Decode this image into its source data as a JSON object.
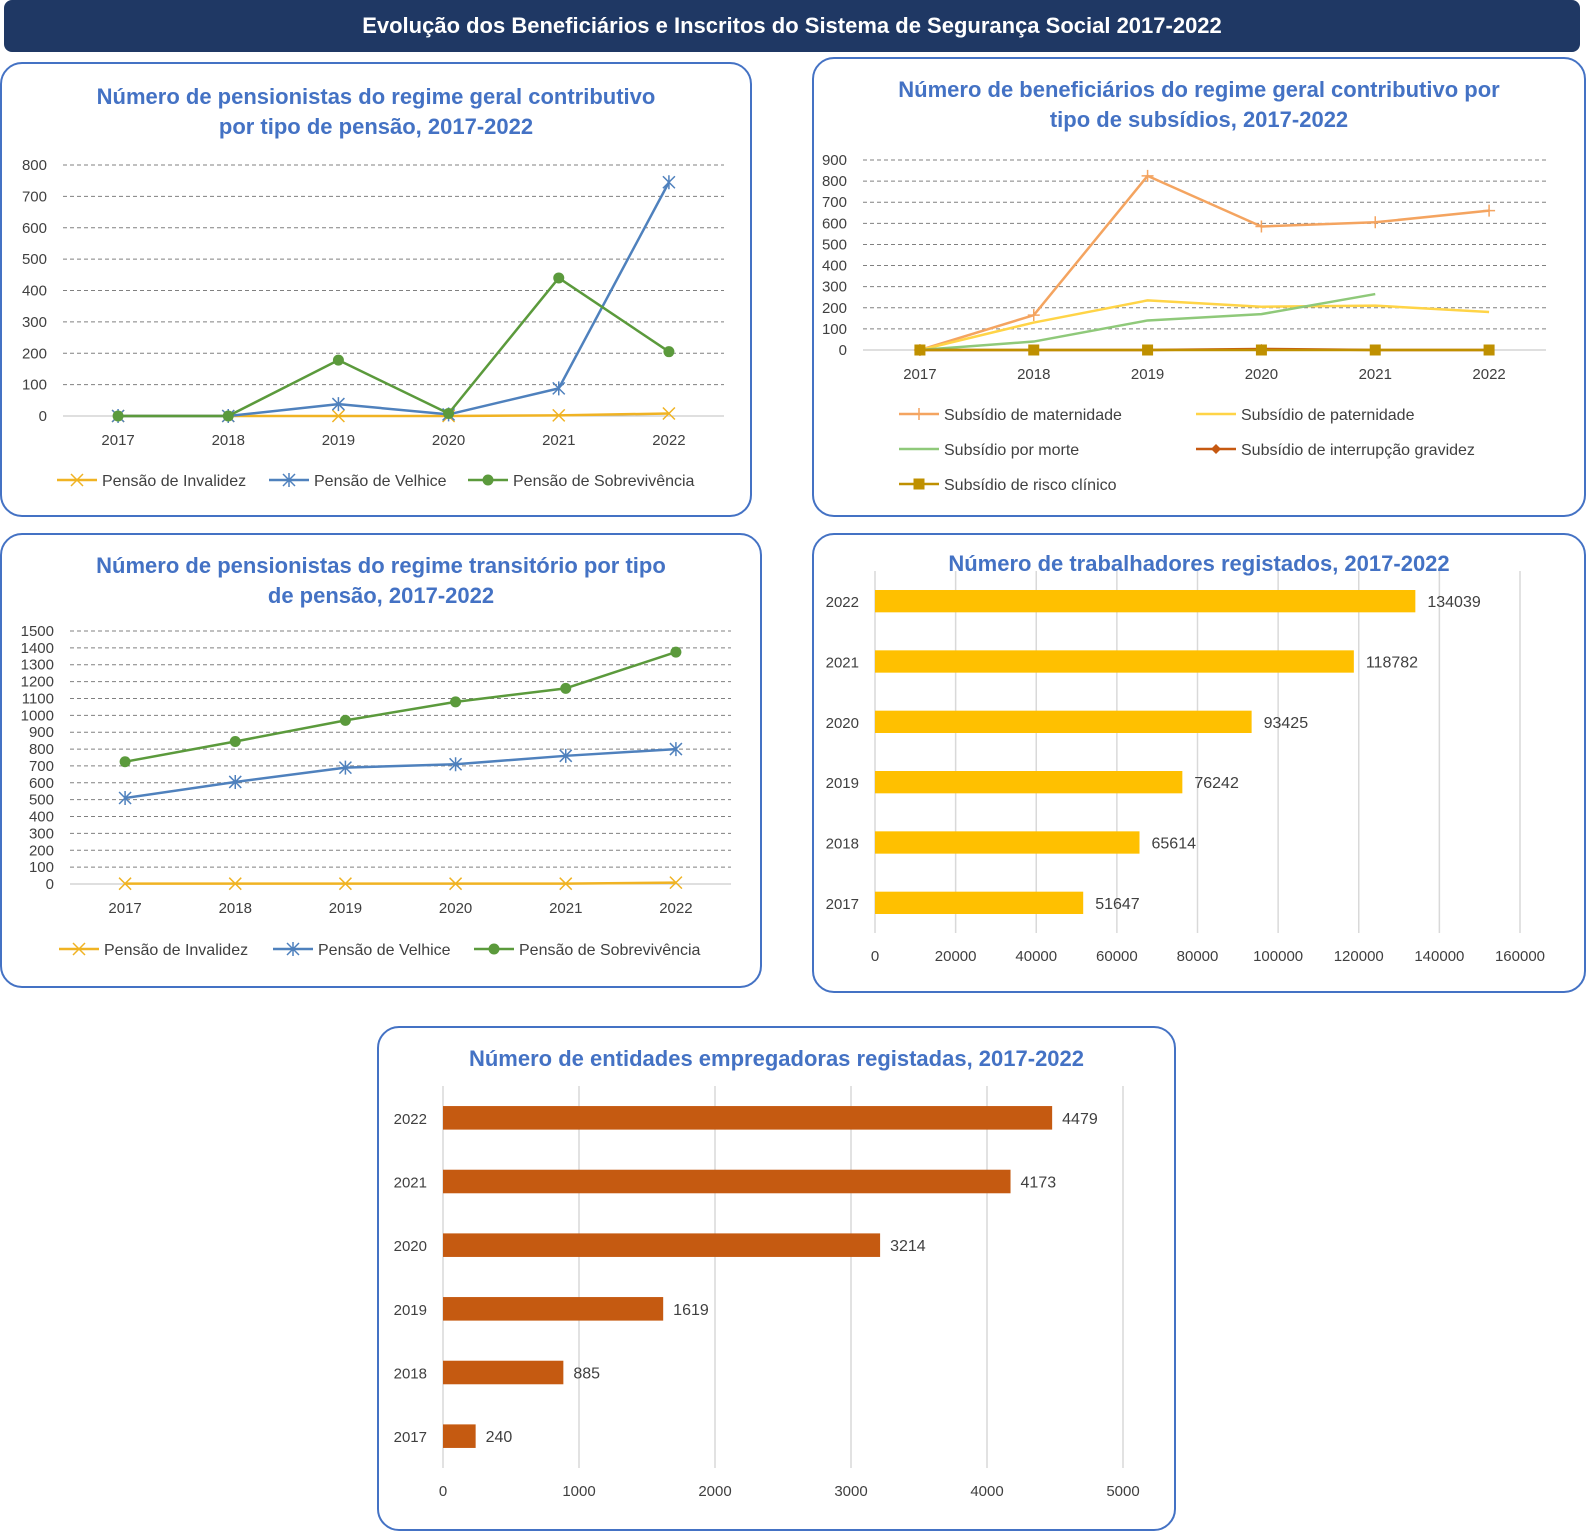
{
  "page": {
    "title": "Evolução dos Beneficiários e Inscritos do Sistema de Segurança Social 2017-2022"
  },
  "colors": {
    "banner": "#1f3864",
    "panel_border": "#4472c4",
    "title_text": "#4472c4"
  },
  "chart_data": [
    {
      "id": "pensionistas_geral",
      "type": "line",
      "title_lines": [
        "Número de pensionistas do regime geral contributivo",
        "por tipo de pensão, 2017-2022"
      ],
      "x": [
        "2017",
        "2018",
        "2019",
        "2020",
        "2021",
        "2022"
      ],
      "ylim": [
        0,
        800
      ],
      "yticks": [
        0,
        100,
        200,
        300,
        400,
        500,
        600,
        700,
        800
      ],
      "grid": true,
      "legend_position": "bottom",
      "series": [
        {
          "name": "Pensão de Invalidez",
          "color": "#f0b323",
          "marker": "x",
          "values": [
            0,
            0,
            0,
            0,
            2,
            8
          ]
        },
        {
          "name": "Pensão de Velhice",
          "color": "#4f81bd",
          "marker": "asterisk",
          "values": [
            0,
            0,
            38,
            5,
            88,
            745
          ]
        },
        {
          "name": "Pensão de Sobrevivência",
          "color": "#5b9a3c",
          "marker": "circle",
          "values": [
            0,
            0,
            178,
            8,
            440,
            205
          ]
        }
      ]
    },
    {
      "id": "beneficiarios_subsidios",
      "type": "line",
      "title_lines": [
        "Número de beneficiários do regime geral contributivo por",
        "tipo de subsídios, 2017-2022"
      ],
      "x": [
        "2017",
        "2018",
        "2019",
        "2020",
        "2021",
        "2022"
      ],
      "ylim": [
        0,
        900
      ],
      "yticks": [
        0,
        100,
        200,
        300,
        400,
        500,
        600,
        700,
        800,
        900
      ],
      "grid": true,
      "legend_position": "bottom",
      "series": [
        {
          "name": "Subsídio de maternidade",
          "color": "#f4a460",
          "marker": "plus",
          "values": [
            0,
            165,
            825,
            585,
            605,
            660
          ]
        },
        {
          "name": "Subsídio de paternidade",
          "color": "#ffd447",
          "marker": "none",
          "values": [
            0,
            130,
            235,
            205,
            210,
            180
          ]
        },
        {
          "name": "Subsídio por morte",
          "color": "#8fc97a",
          "marker": "none",
          "values": [
            0,
            40,
            140,
            170,
            265,
            null
          ]
        },
        {
          "name": "Subsídio de interrupção gravidez",
          "color": "#c65911",
          "marker": "diamond",
          "values": [
            0,
            0,
            0,
            5,
            0,
            0
          ]
        },
        {
          "name": "Subsídio de risco clínico",
          "color": "#bf9000",
          "marker": "square",
          "values": [
            0,
            0,
            0,
            0,
            0,
            0
          ]
        }
      ]
    },
    {
      "id": "pensionistas_transitorio",
      "type": "line",
      "title_lines": [
        "Número de pensionistas do regime transitório por tipo",
        "de pensão, 2017-2022"
      ],
      "x": [
        "2017",
        "2018",
        "2019",
        "2020",
        "2021",
        "2022"
      ],
      "ylim": [
        0,
        1500
      ],
      "yticks": [
        0,
        100,
        200,
        300,
        400,
        500,
        600,
        700,
        800,
        900,
        1000,
        1100,
        1200,
        1300,
        1400,
        1500
      ],
      "grid": true,
      "legend_position": "bottom",
      "series": [
        {
          "name": "Pensão de Invalidez",
          "color": "#f0b323",
          "marker": "x",
          "values": [
            2,
            2,
            2,
            2,
            2,
            8
          ]
        },
        {
          "name": "Pensão de Velhice",
          "color": "#4f81bd",
          "marker": "asterisk",
          "values": [
            510,
            605,
            690,
            710,
            760,
            800
          ]
        },
        {
          "name": "Pensão de Sobrevivência",
          "color": "#5b9a3c",
          "marker": "circle",
          "values": [
            725,
            845,
            970,
            1080,
            1160,
            1375
          ]
        }
      ]
    },
    {
      "id": "trabalhadores",
      "type": "bar",
      "orientation": "horizontal",
      "title_lines": [
        "Número de  trabalhadores registados, 2017-2022"
      ],
      "categories": [
        "2022",
        "2021",
        "2020",
        "2019",
        "2018",
        "2017"
      ],
      "values": [
        134039,
        118782,
        93425,
        76242,
        65614,
        51647
      ],
      "value_labels": [
        "134039",
        "118782",
        "93425",
        "76242",
        "65614",
        "51647"
      ],
      "xlim": [
        0,
        160000
      ],
      "xticks": [
        "0",
        "20000",
        "40000",
        "60000",
        "80000",
        "100000",
        "120000",
        "140000",
        "160000"
      ],
      "color": "#ffc000",
      "grid": true
    },
    {
      "id": "entidades",
      "type": "bar",
      "orientation": "horizontal",
      "title_lines": [
        "Número de  entidades empregadoras registadas, 2017-2022"
      ],
      "categories": [
        "2022",
        "2021",
        "2020",
        "2019",
        "2018",
        "2017"
      ],
      "values": [
        4479,
        4173,
        3214,
        1619,
        885,
        240
      ],
      "value_labels": [
        "4479",
        "4173",
        "3214",
        "1619",
        "885",
        "240"
      ],
      "xlim": [
        0,
        5000
      ],
      "xticks": [
        "0",
        "1000",
        "2000",
        "3000",
        "4000",
        "5000"
      ],
      "color": "#c55a11",
      "grid": true
    }
  ]
}
